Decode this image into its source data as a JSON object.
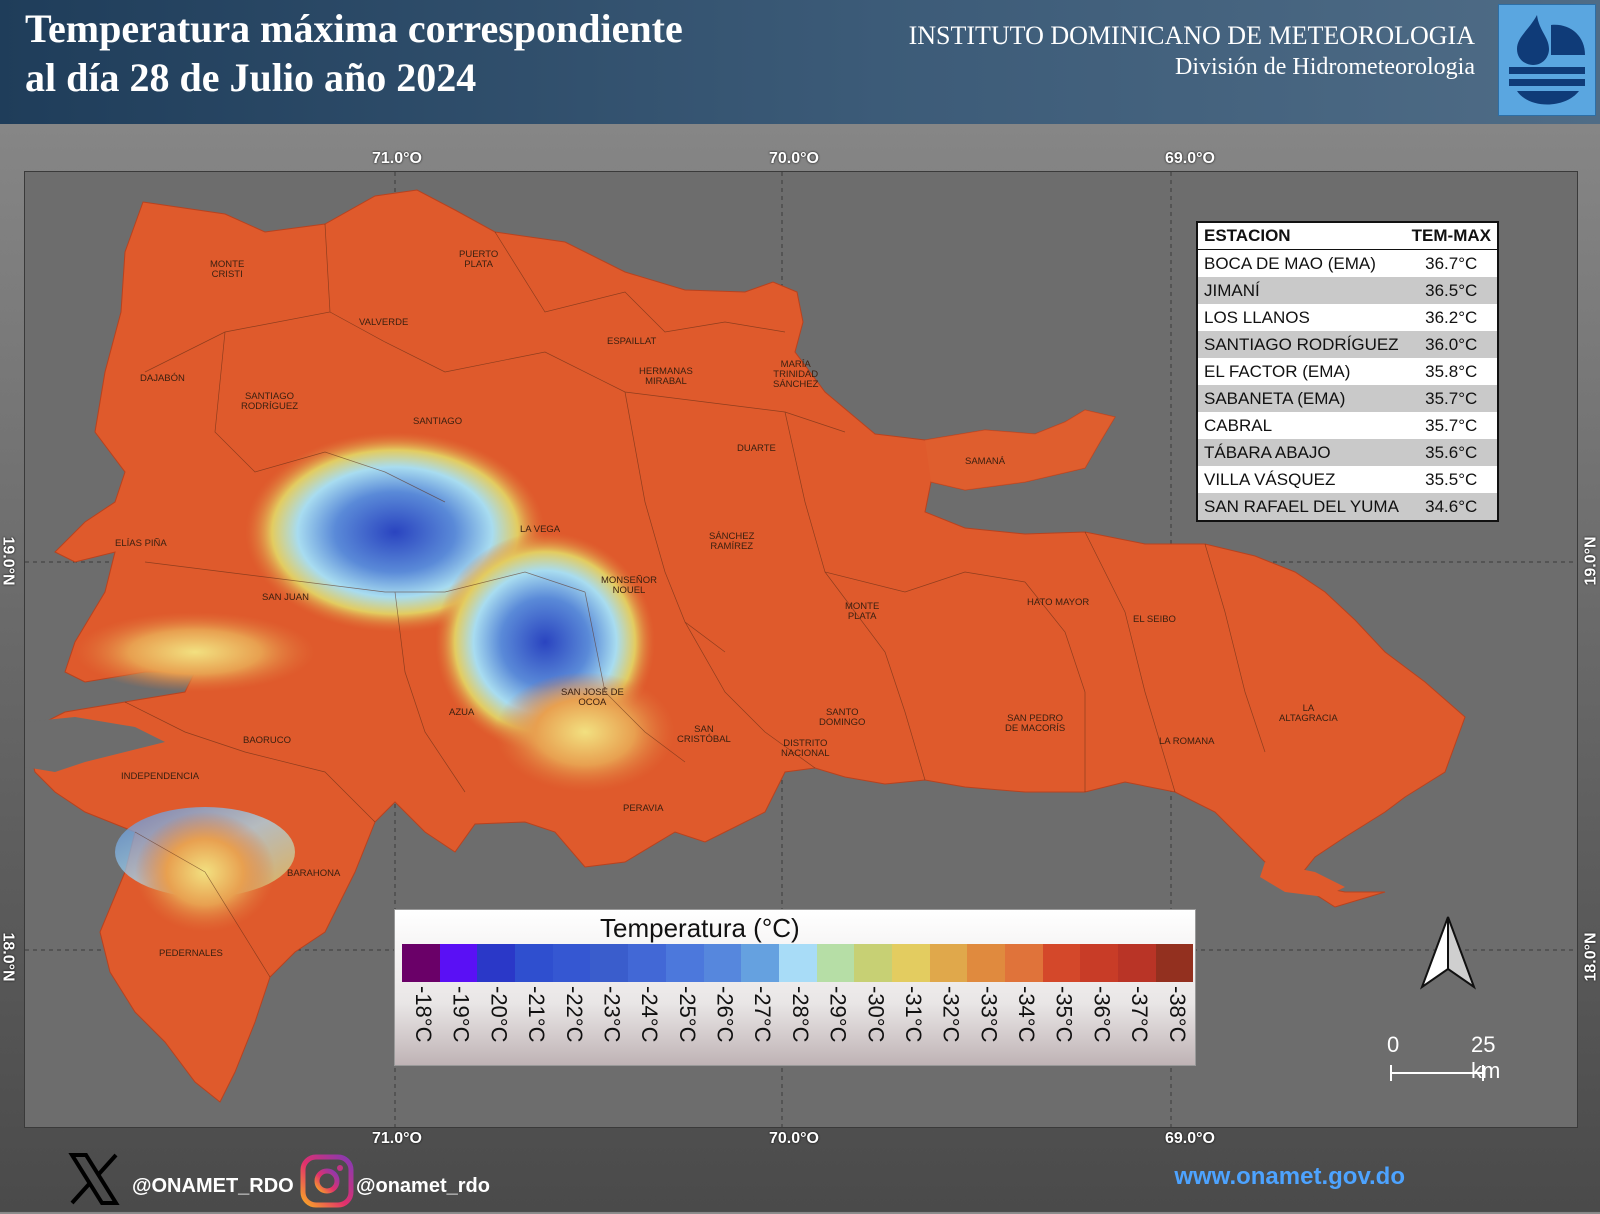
{
  "header": {
    "title_line1": "Temperatura máxima correspondiente",
    "title_line2": "al día 28 de Julio año 2024",
    "institute": "INSTITUTO DOMINICANO DE METEOROLOGIA",
    "division": "División de Hidrometeorologia"
  },
  "axes": {
    "lon_labels": [
      "71.0°O",
      "70.0°O",
      "69.0°O"
    ],
    "lat_labels": [
      "19.0°N",
      "18.0°N"
    ]
  },
  "stations": {
    "header_station": "ESTACION",
    "header_temp": "TEM-MAX",
    "rows": [
      {
        "name": "BOCA DE MAO (EMA)",
        "temp": "36.7°C"
      },
      {
        "name": "JIMANÍ",
        "temp": "36.5°C"
      },
      {
        "name": "LOS LLANOS",
        "temp": "36.2°C"
      },
      {
        "name": "SANTIAGO RODRÍGUEZ",
        "temp": "36.0°C"
      },
      {
        "name": "EL FACTOR (EMA)",
        "temp": "35.8°C"
      },
      {
        "name": "SABANETA (EMA)",
        "temp": "35.7°C"
      },
      {
        "name": "CABRAL",
        "temp": "35.7°C"
      },
      {
        "name": "TÁBARA ABAJO",
        "temp": "35.6°C"
      },
      {
        "name": "VILLA VÁSQUEZ",
        "temp": "35.5°C"
      },
      {
        "name": "SAN RAFAEL DEL YUMA",
        "temp": "34.6°C"
      }
    ]
  },
  "provinces": [
    {
      "id": "monte-cristi",
      "label": "MONTE\nCRISTI"
    },
    {
      "id": "puerto-plata",
      "label": "PUERTO\nPLATA"
    },
    {
      "id": "valverde",
      "label": "VALVERDE"
    },
    {
      "id": "espaillat",
      "label": "ESPAILLAT"
    },
    {
      "id": "hermanas-mirabal",
      "label": "HERMANAS\nMIRABAL"
    },
    {
      "id": "maria-trinidad-sanchez",
      "label": "MARÍA\nTRINIDAD\nSÁNCHEZ"
    },
    {
      "id": "dajabon",
      "label": "DAJABÓN"
    },
    {
      "id": "santiago-rodriguez",
      "label": "SANTIAGO\nRODRÍGUEZ"
    },
    {
      "id": "santiago",
      "label": "SANTIAGO"
    },
    {
      "id": "duarte",
      "label": "DUARTE"
    },
    {
      "id": "samana",
      "label": "SAMANÁ"
    },
    {
      "id": "la-vega",
      "label": "LA VEGA"
    },
    {
      "id": "elias-pina",
      "label": "ELÍAS PIÑA"
    },
    {
      "id": "sanchez-ramirez",
      "label": "SÁNCHEZ\nRAMÍREZ"
    },
    {
      "id": "monsenor-nouel",
      "label": "MONSEÑOR\nNOUEL"
    },
    {
      "id": "san-juan",
      "label": "SAN JUAN"
    },
    {
      "id": "monte-plata",
      "label": "MONTE\nPLATA"
    },
    {
      "id": "hato-mayor",
      "label": "HATO MAYOR"
    },
    {
      "id": "el-seibo",
      "label": "EL SEIBO"
    },
    {
      "id": "san-jose-de-ocoa",
      "label": "SAN JOSÉ DE\nOCOA"
    },
    {
      "id": "azua",
      "label": "AZUA"
    },
    {
      "id": "la-altagracia",
      "label": "LA\nALTAGRACIA"
    },
    {
      "id": "santo-domingo",
      "label": "SANTO\nDOMINGO"
    },
    {
      "id": "san-pedro",
      "label": "SAN PEDRO\nDE MACORÍS"
    },
    {
      "id": "baoruco",
      "label": "BAORUCO"
    },
    {
      "id": "san-cristobal",
      "label": "SAN\nCRISTÓBAL"
    },
    {
      "id": "distrito-nacional",
      "label": "DISTRITO\nNACIONAL"
    },
    {
      "id": "la-romana",
      "label": "LA ROMANA"
    },
    {
      "id": "independencia",
      "label": "INDEPENDENCIA"
    },
    {
      "id": "peravia",
      "label": "PERAVIA"
    },
    {
      "id": "barahona",
      "label": "BARAHONA"
    },
    {
      "id": "pedernales",
      "label": "PEDERNALES"
    }
  ],
  "legend": {
    "title": "Temperatura (°C)",
    "classes": [
      {
        "label": "-18°C",
        "color": "#6a0068"
      },
      {
        "label": "-19°C",
        "color": "#5a10f5"
      },
      {
        "label": "-20°C",
        "color": "#2a38c8"
      },
      {
        "label": "-21°C",
        "color": "#2f4fcf"
      },
      {
        "label": "-22°C",
        "color": "#3557d2"
      },
      {
        "label": "-23°C",
        "color": "#3a5dcc"
      },
      {
        "label": "-24°C",
        "color": "#4268d6"
      },
      {
        "label": "-25°C",
        "color": "#4c78dc"
      },
      {
        "label": "-26°C",
        "color": "#5687dd"
      },
      {
        "label": "-27°C",
        "color": "#65a1e0"
      },
      {
        "label": "-28°C",
        "color": "#a8dcf7"
      },
      {
        "label": "-29°C",
        "color": "#b6dea6"
      },
      {
        "label": "-30°C",
        "color": "#c7d074"
      },
      {
        "label": "-31°C",
        "color": "#e3cc60"
      },
      {
        "label": "-32°C",
        "color": "#e0a84b"
      },
      {
        "label": "-33°C",
        "color": "#e08a3e"
      },
      {
        "label": "-34°C",
        "color": "#e0733a"
      },
      {
        "label": "-35°C",
        "color": "#d4482a"
      },
      {
        "label": "-36°C",
        "color": "#c83c27"
      },
      {
        "label": "-37°C",
        "color": "#b93426"
      },
      {
        "label": "-38°C",
        "color": "#93301f"
      }
    ]
  },
  "scale": {
    "zero": "0",
    "distance": "25 km"
  },
  "footer": {
    "x_handle": "@ONAMET_RDO",
    "ig_handle": "@onamet_rdo",
    "website": "www.onamet.gov.do"
  },
  "icons": {
    "x": "x-logo-icon",
    "instagram": "instagram-icon",
    "north": "north-arrow-icon",
    "logo": "onamet-logo"
  }
}
